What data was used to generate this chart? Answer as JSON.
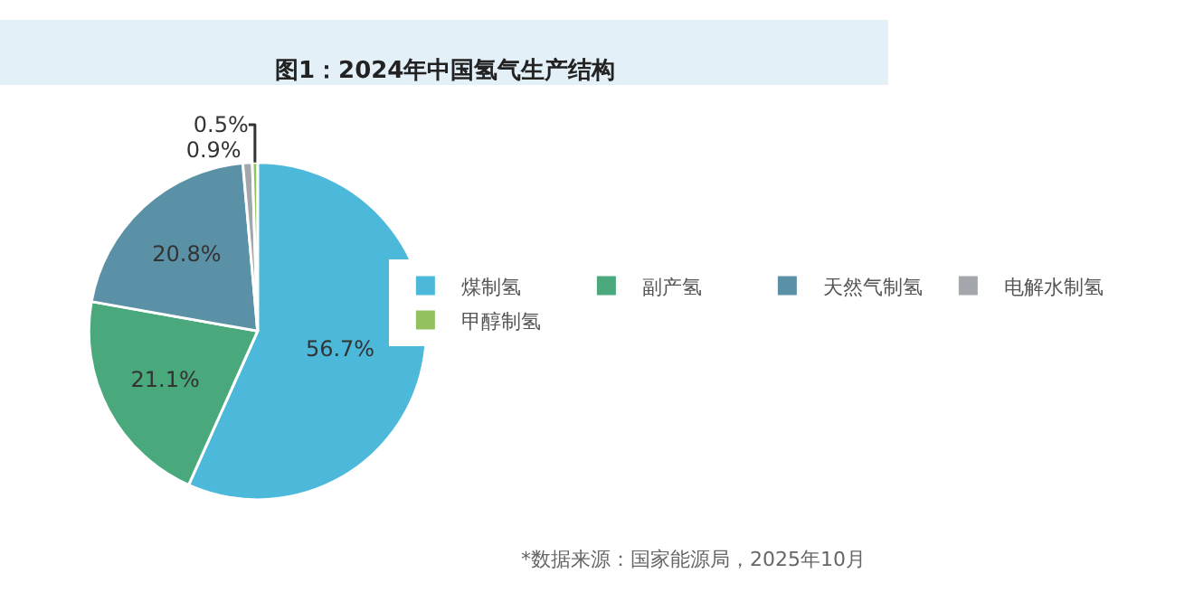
{
  "chart_data": {
    "type": "pie",
    "title": "图1：2024年中国氢气生产结构",
    "categories": [
      "煤制氢",
      "副产氢",
      "天然气制氢",
      "电解水制氢",
      "甲醇制氢"
    ],
    "values": [
      56.7,
      21.1,
      20.8,
      0.9,
      0.5
    ],
    "value_labels": [
      "56.7%",
      "21.1%",
      "20.8%",
      "0.9%",
      "0.5%"
    ],
    "colors": [
      "#4db9da",
      "#4aa97c",
      "#5b91a6",
      "#a3a7ab",
      "#93c160"
    ],
    "legend": "right",
    "annotations": [
      "*数据来源：国家能源局，2025年10月"
    ]
  }
}
